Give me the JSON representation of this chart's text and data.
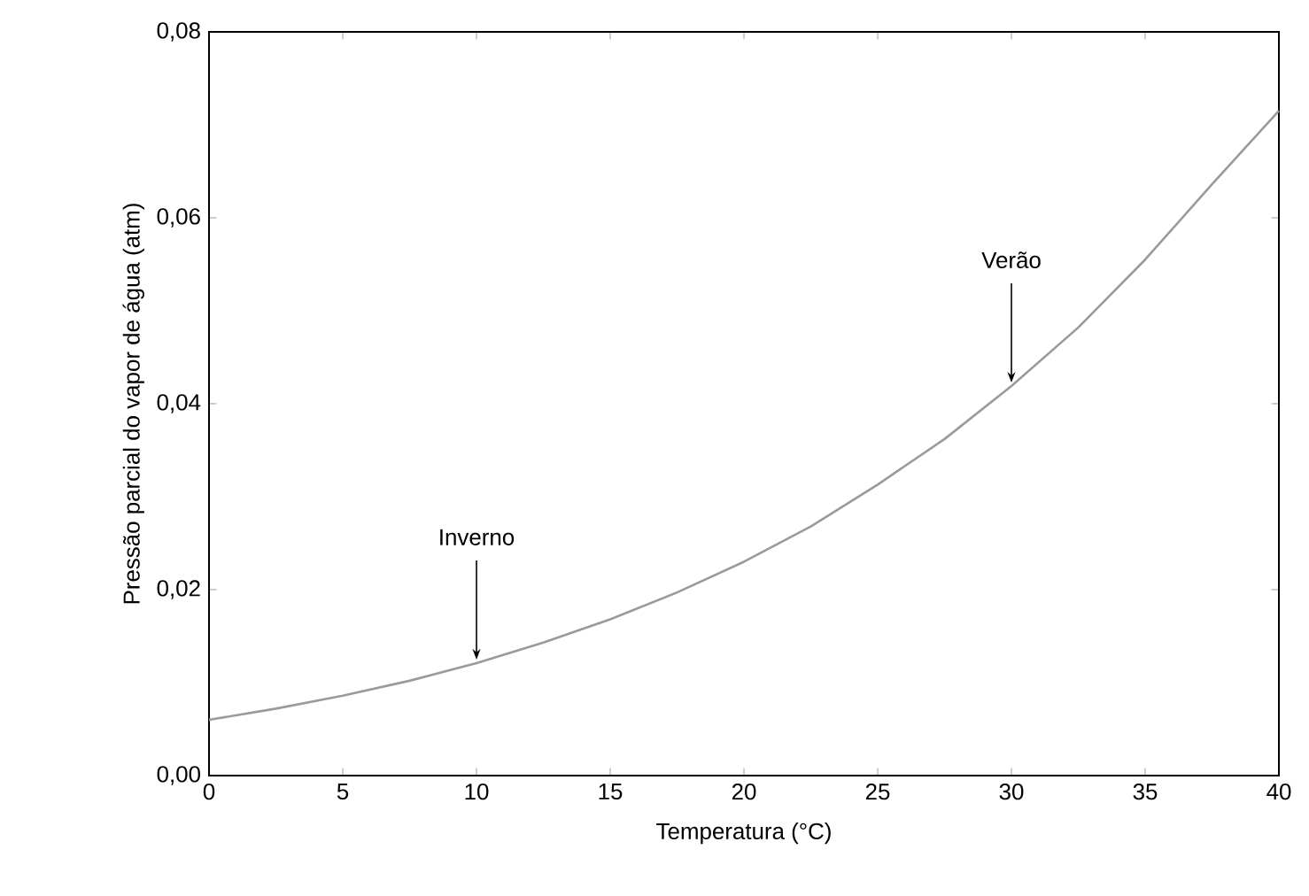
{
  "chart_data": {
    "type": "line",
    "xlabel": "Temperatura (°C)",
    "ylabel": "Pressão parcial do vapor de água  (atm)",
    "x": [
      0,
      2.5,
      5,
      7.5,
      10,
      12.5,
      15,
      17.5,
      20,
      22.5,
      25,
      27.5,
      30,
      32.5,
      35,
      37.5,
      40
    ],
    "series": [
      {
        "color": "#9a9a9a",
        "values": [
          0.006,
          0.0072,
          0.0086,
          0.0102,
          0.0121,
          0.0143,
          0.0168,
          0.0197,
          0.023,
          0.0268,
          0.0313,
          0.0362,
          0.0419,
          0.0482,
          0.0555,
          0.0636,
          0.0715
        ]
      }
    ],
    "xlim": [
      0,
      40
    ],
    "ylim": [
      0,
      0.08
    ],
    "xticks": [
      0,
      5,
      10,
      15,
      20,
      25,
      30,
      35,
      40
    ],
    "yticks": [
      {
        "value": 0,
        "label": "0,00"
      },
      {
        "value": 0.02,
        "label": "0,02"
      },
      {
        "value": 0.04,
        "label": "0,04"
      },
      {
        "value": 0.06,
        "label": "0,06"
      },
      {
        "value": 0.08,
        "label": "0,08"
      }
    ],
    "annotations": [
      {
        "text": "Inverno",
        "x": 10,
        "y": 0.0121
      },
      {
        "text": "Verão",
        "x": 30,
        "y": 0.0419
      }
    ],
    "grid": false,
    "marker": "none",
    "line_style": "solid"
  }
}
